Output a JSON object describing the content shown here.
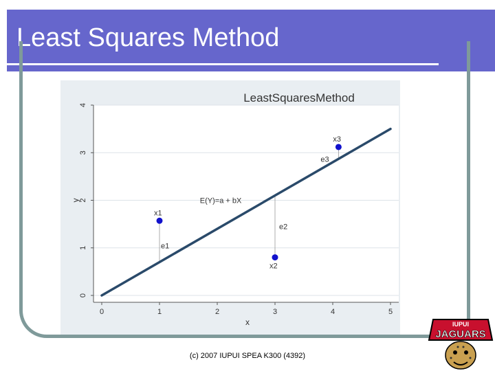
{
  "slide": {
    "title": "Least Squares Method",
    "footer": "(c) 2007 IUPUI SPEA K300 (4392)"
  },
  "logo": {
    "top_text": "IUPUI",
    "main_text": "JAGUARS"
  },
  "chart_data": {
    "type": "scatter",
    "title": "LeastSquaresMethod",
    "xlabel": "x",
    "ylabel": "y",
    "xlim": [
      0,
      5
    ],
    "ylim": [
      0,
      4
    ],
    "xticks": [
      "0",
      "1",
      "2",
      "3",
      "4",
      "5"
    ],
    "yticks": [
      "0",
      "1",
      "2",
      "3",
      "4"
    ],
    "grid": "horizontal",
    "fit_line": {
      "x": [
        0,
        5
      ],
      "y": [
        0,
        3.5
      ]
    },
    "points": [
      {
        "label": "x1",
        "x": 1,
        "y": 1.57,
        "residual_label": "e1"
      },
      {
        "label": "x2",
        "x": 3,
        "y": 0.8,
        "residual_label": "e2"
      },
      {
        "label": "x3",
        "x": 4.1,
        "y": 3.12,
        "residual_label": "e3"
      }
    ],
    "annotation": "E(Y)=a + bX",
    "annotation_pos": {
      "x": 1.7,
      "y": 2.0
    },
    "colors": {
      "line": "#2a4a6a",
      "points": "#1111cc",
      "panel": "#e9eef2",
      "plot": "#ffffff"
    }
  }
}
